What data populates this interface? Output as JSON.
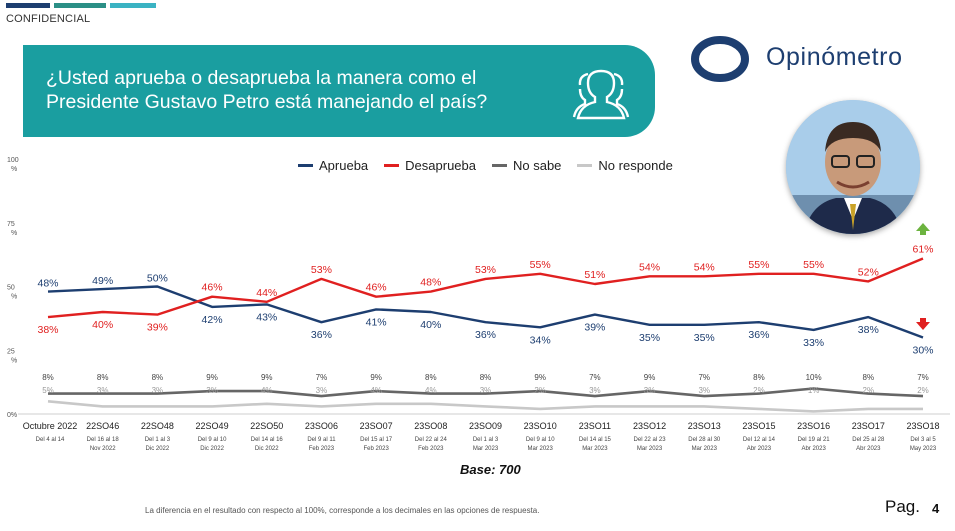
{
  "header": {
    "confidential": "CONFIDENCIAL",
    "bar_colors": [
      "#1d3e70",
      "#2b8f86",
      "#3bb3c3"
    ]
  },
  "banner": {
    "question": "¿Usted aprueba o desaprueba la manera como el Presidente Gustavo Petro está manejando el país?",
    "color": "#1a9ea0",
    "icon": "people-group-icon"
  },
  "brand": {
    "name": "Opinómetro",
    "color": "#1d3e70"
  },
  "photo": {
    "icon": "president-portrait"
  },
  "chart_data": {
    "type": "line",
    "ylim": [
      0,
      100
    ],
    "y_ticks": [
      {
        "value": 100,
        "label": "100",
        "unit": "%"
      },
      {
        "value": 75,
        "label": "75",
        "unit": "%"
      },
      {
        "value": 50,
        "label": "50",
        "unit": "%"
      },
      {
        "value": 25,
        "label": "25",
        "unit": "%"
      },
      {
        "value": 0,
        "label": "0%",
        "unit": ""
      }
    ],
    "categories": [
      "Octubre 2022",
      "22SO46",
      "22SO48",
      "22SO49",
      "22SO50",
      "23SO06",
      "23SO07",
      "23SO08",
      "23SO09",
      "23SO10",
      "23SO11",
      "23SO12",
      "23SO13",
      "23SO15",
      "23SO16",
      "23SO17",
      "23SO18"
    ],
    "date_lines": [
      [
        "Del 4 al 14"
      ],
      [
        "Del 16 al 18",
        "Nov 2022"
      ],
      [
        "Del 1 al 3",
        "Dic 2022"
      ],
      [
        "Del 9 al 10",
        "Dic 2022"
      ],
      [
        "Del 14 al 16",
        "Dic 2022"
      ],
      [
        "Del 9 al 11",
        "Feb 2023"
      ],
      [
        "Del 15 al 17",
        "Feb 2023"
      ],
      [
        "Del 22 al 24",
        "Feb 2023"
      ],
      [
        "Del 1 al 3",
        "Mar 2023"
      ],
      [
        "Del 9 al 10",
        "Mar 2023"
      ],
      [
        "Del 14 al 15",
        "Mar 2023"
      ],
      [
        "Del 22 al 23",
        "Mar 2023"
      ],
      [
        "Del 28 al 30",
        "Mar 2023"
      ],
      [
        "Del 12 al 14",
        "Abr 2023"
      ],
      [
        "Del 19 al 21",
        "Abr 2023"
      ],
      [
        "Del 25 al 28",
        "Abr 2023"
      ],
      [
        "Del 3 al 5",
        "May 2023"
      ]
    ],
    "series": [
      {
        "name": "Aprueba",
        "color": "#1d3e70",
        "values": [
          48,
          49,
          50,
          42,
          43,
          36,
          41,
          40,
          36,
          34,
          39,
          35,
          35,
          36,
          33,
          38,
          30
        ],
        "labels": [
          "48%",
          "49%",
          "50%",
          "42%",
          "43%",
          "36%",
          "41%",
          "40%",
          "36%",
          "34%",
          "39%",
          "35%",
          "35%",
          "36%",
          "33%",
          "38%",
          "30%"
        ]
      },
      {
        "name": "Desaprueba",
        "color": "#e02020",
        "values": [
          38,
          40,
          39,
          46,
          44,
          53,
          46,
          48,
          53,
          55,
          51,
          54,
          54,
          55,
          55,
          52,
          61
        ],
        "labels": [
          "38%",
          "40%",
          "39%",
          "46%",
          "44%",
          "53%",
          "46%",
          "48%",
          "53%",
          "55%",
          "51%",
          "54%",
          "54%",
          "55%",
          "55%",
          "52%",
          "61%"
        ]
      },
      {
        "name": "No sabe",
        "color": "#666666",
        "values": [
          8,
          8,
          8,
          9,
          9,
          7,
          9,
          8,
          8,
          9,
          7,
          9,
          7,
          8,
          10,
          8,
          7
        ],
        "labels": [
          "8%",
          "8%",
          "8%",
          "9%",
          "9%",
          "7%",
          "9%",
          "8%",
          "8%",
          "9%",
          "7%",
          "9%",
          "7%",
          "8%",
          "10%",
          "8%",
          "7%"
        ]
      },
      {
        "name": "No responde",
        "color": "#c8c8c8",
        "values": [
          5,
          3,
          3,
          3,
          4,
          3,
          4,
          4,
          3,
          2,
          3,
          3,
          3,
          2,
          1,
          2,
          2
        ],
        "labels": [
          "5%",
          "3%",
          "3%",
          "3%",
          "4%",
          "3%",
          "4%",
          "4%",
          "3%",
          "2%",
          "3%",
          "3%",
          "3%",
          "2%",
          "1%",
          "2%",
          "2%"
        ]
      }
    ],
    "trend_markers": [
      {
        "series": "Desaprueba",
        "direction": "up",
        "color": "#6cb33f"
      },
      {
        "series": "Aprueba",
        "direction": "down",
        "color": "#e02020"
      }
    ],
    "legend_position": "top",
    "grid": false
  },
  "footer": {
    "base": "Base: 700",
    "note": "La diferencia en el resultado con respecto al 100%, corresponde a los decimales en las opciones de respuesta.",
    "page_label": "Pag.",
    "page_number": "4"
  }
}
